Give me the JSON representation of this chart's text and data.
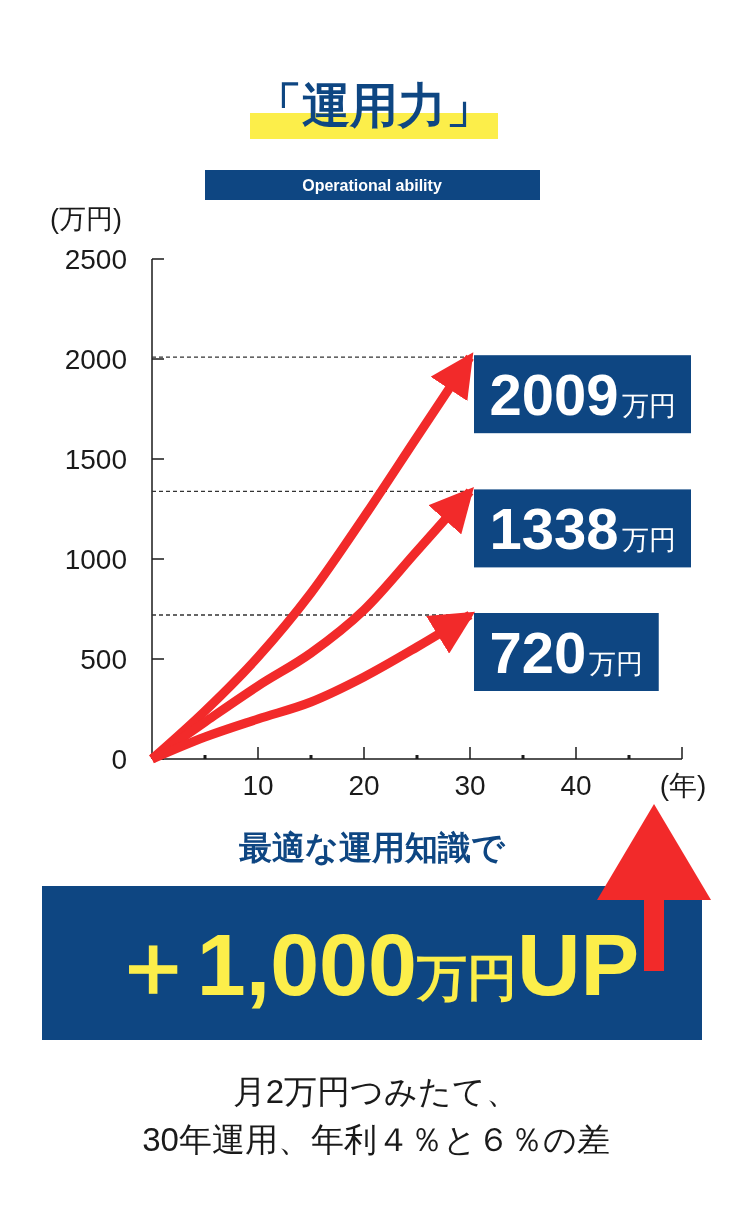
{
  "chart_data": {
    "type": "line",
    "title": "「運用力」",
    "subtitle": "Operational ability",
    "xlabel": "(年)",
    "ylabel": "(万円)",
    "x": [
      0,
      5,
      10,
      15,
      20,
      25,
      30
    ],
    "series": [
      {
        "color": "#f22a2a",
        "values": [
          0,
          240,
          510,
          830,
          1210,
          1610,
          2009
        ],
        "value_labels": [
          null,
          null,
          null,
          null,
          null,
          null,
          "2009万円"
        ]
      },
      {
        "color": "#f22a2a",
        "values": [
          0,
          185,
          365,
          530,
          745,
          1040,
          1338
        ],
        "value_labels": [
          null,
          null,
          null,
          null,
          null,
          null,
          "1338万円"
        ]
      },
      {
        "color": "#f22a2a",
        "values": [
          0,
          110,
          200,
          285,
          410,
          560,
          720
        ],
        "value_labels": [
          null,
          null,
          null,
          null,
          null,
          null,
          "720万円"
        ]
      }
    ],
    "xlim": [
      0,
      50
    ],
    "ylim": [
      0,
      2500
    ],
    "xticks": [
      {
        "value": 5,
        "label": null
      },
      10,
      {
        "value": 15,
        "label": null
      },
      20,
      {
        "value": 25,
        "label": null
      },
      30,
      {
        "value": 35,
        "label": null
      },
      40,
      {
        "value": 45,
        "label": null
      },
      {
        "value": 50,
        "label": null
      }
    ],
    "yticks": [
      0,
      500,
      1000,
      1500,
      2000,
      2500
    ],
    "ref_lines": [
      {
        "axis": "y",
        "value": 2009,
        "color": "#333333",
        "line_style": "dashed"
      },
      {
        "axis": "y",
        "value": 1338,
        "color": "#333333",
        "line_style": "dashed"
      },
      {
        "axis": "y",
        "value": 720,
        "color": "#333333",
        "line_style": "dashed"
      }
    ],
    "line_style": "solid",
    "annotations": [
      "最適な運用知識で",
      "＋1,000万円UP",
      "月2万円つみたて、\n30年運用、年利４％と６％の差"
    ]
  }
}
